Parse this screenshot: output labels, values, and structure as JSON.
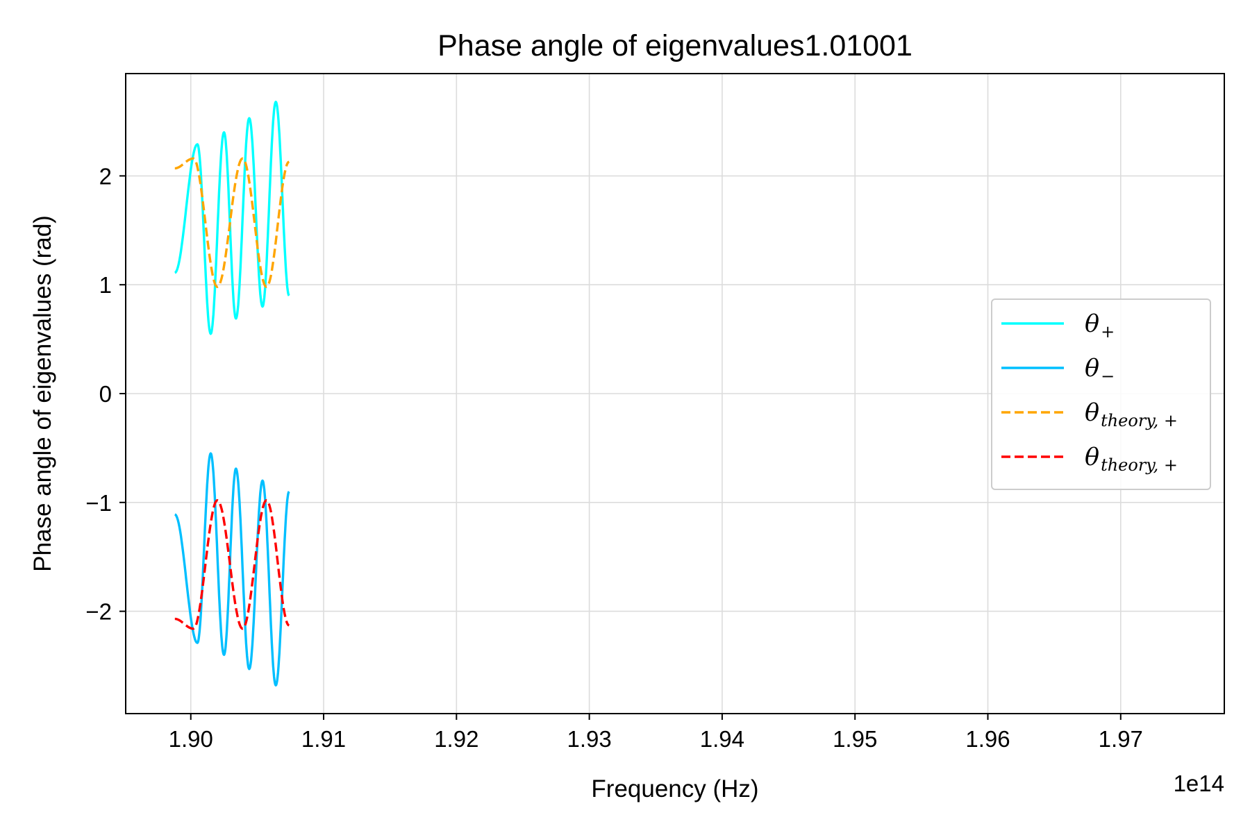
{
  "chart_data": {
    "type": "line",
    "title": "Phase angle of eigenvalues1.01001",
    "xlabel": "Frequency (Hz)",
    "ylabel": "Phase angle of eigenvalues (rad)",
    "x_offset_label": "1e14",
    "xlim": [
      1.8951,
      1.9778
    ],
    "ylim": [
      -2.94,
      2.94
    ],
    "x_ticks": [
      1.9,
      1.91,
      1.92,
      1.93,
      1.94,
      1.95,
      1.96,
      1.97
    ],
    "x_tick_labels": [
      "1.90",
      "1.91",
      "1.92",
      "1.93",
      "1.94",
      "1.95",
      "1.96",
      "1.97"
    ],
    "y_ticks": [
      -2,
      -1,
      0,
      1,
      2
    ],
    "y_tick_labels": [
      "−2",
      "−1",
      "0",
      "1",
      "2"
    ],
    "grid": true,
    "legend_position": "center-right",
    "series": [
      {
        "name": "θ",
        "subscript": "+",
        "color": "#00FFFF",
        "style": "solid",
        "x": [
          1.8988,
          1.9005,
          1.9015,
          1.9025,
          1.9034,
          1.9044,
          1.9054,
          1.9064,
          1.9074
        ],
        "y": [
          1.11,
          2.29,
          0.55,
          2.4,
          0.69,
          2.53,
          0.8,
          2.68,
          0.9
        ]
      },
      {
        "name": "θ",
        "subscript": "−",
        "color": "#00BFFF",
        "style": "solid",
        "x": [
          1.8988,
          1.9005,
          1.9015,
          1.9025,
          1.9034,
          1.9044,
          1.9054,
          1.9064,
          1.9074
        ],
        "y": [
          -1.11,
          -2.29,
          -0.55,
          -2.4,
          -0.69,
          -2.53,
          -0.8,
          -2.68,
          -0.9
        ]
      },
      {
        "name": "θ",
        "subscript": "theory, +",
        "color": "#FFA500",
        "style": "dashed",
        "x": [
          1.8988,
          1.9002,
          1.902,
          1.9039,
          1.9057,
          1.9074
        ],
        "y": [
          2.07,
          2.16,
          0.98,
          2.16,
          0.98,
          2.13
        ]
      },
      {
        "name": "θ",
        "subscript": "theory, +",
        "color": "#FF0000",
        "style": "dashed",
        "x": [
          1.8988,
          1.9002,
          1.902,
          1.9039,
          1.9057,
          1.9074
        ],
        "y": [
          -2.07,
          -2.16,
          -0.98,
          -2.16,
          -0.98,
          -2.13
        ]
      }
    ]
  }
}
